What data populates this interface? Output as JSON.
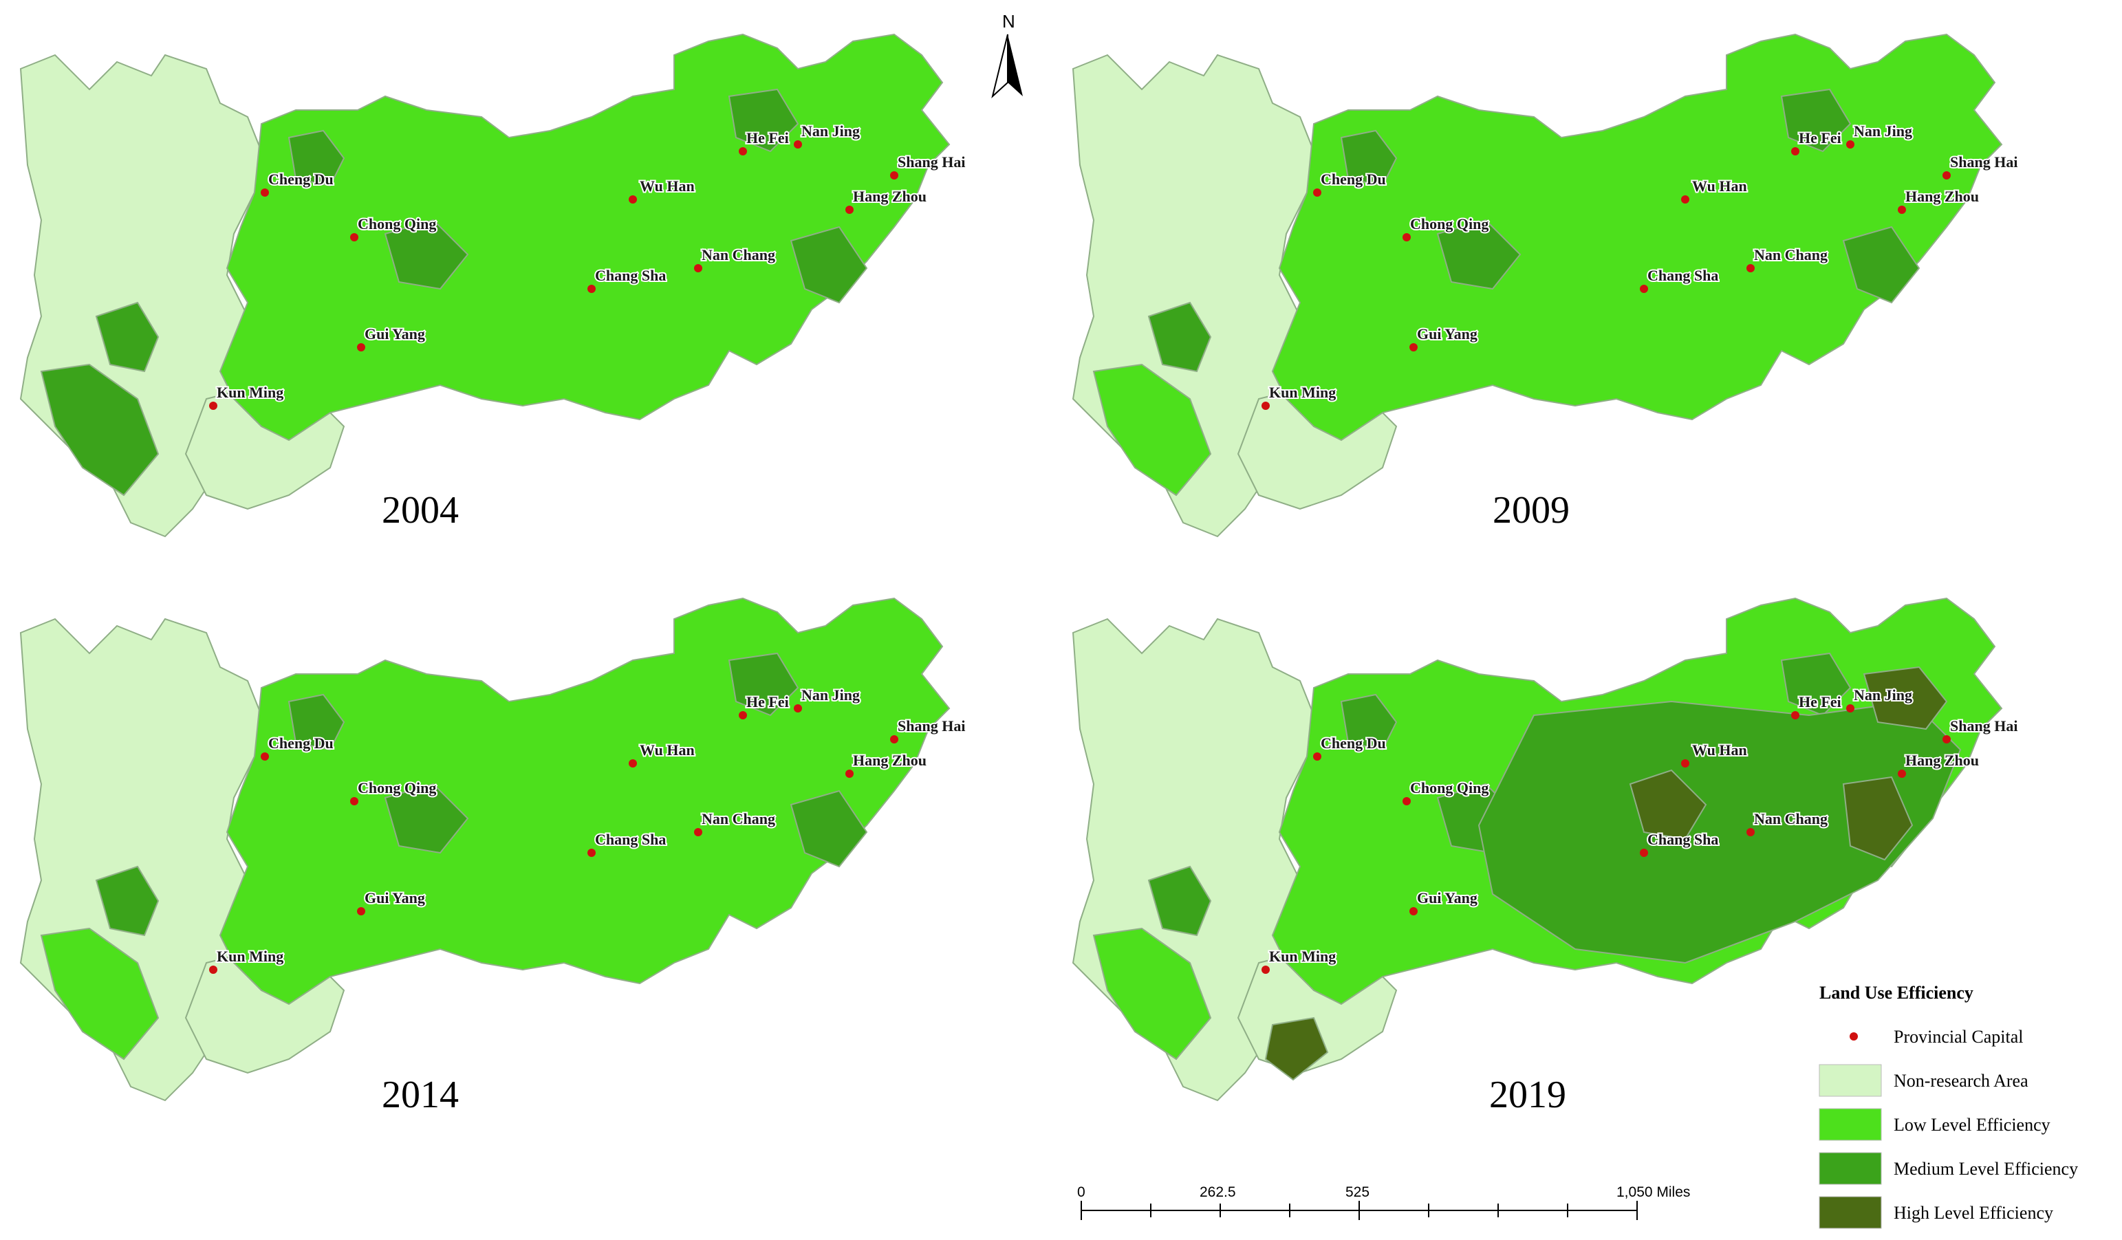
{
  "colors": {
    "non_research": "#d4f5c4",
    "low": "#4de01c",
    "medium": "#3ba31b",
    "high": "#4b6b14",
    "capital_dot": "#d01010",
    "boundary": "#8fae86"
  },
  "panels": [
    {
      "id": "p2004",
      "year": "2004",
      "medium_share": 0.25,
      "high_share": 0.0
    },
    {
      "id": "p2009",
      "year": "2009",
      "medium_share": 0.25,
      "high_share": 0.0
    },
    {
      "id": "p2014",
      "year": "2014",
      "medium_share": 0.28,
      "high_share": 0.0
    },
    {
      "id": "p2019",
      "year": "2019",
      "medium_share": 0.6,
      "high_share": 0.12
    }
  ],
  "capitals": [
    "Cheng Du",
    "Chong Qing",
    "Gui Yang",
    "Kun Ming",
    "Wu Han",
    "Chang Sha",
    "Nan Chang",
    "He Fei",
    "Nan Jing",
    "Shang Hai",
    "Hang Zhou"
  ],
  "north_arrow": {
    "label": "N",
    "icon": "north-arrow-icon"
  },
  "legend": {
    "title": "Land Use Efficiency",
    "items": [
      {
        "key": "capital",
        "label": "Provincial Capital"
      },
      {
        "key": "non_research",
        "label": "Non-research Area"
      },
      {
        "key": "low",
        "label": "Low       Level Efficiency"
      },
      {
        "key": "medium",
        "label": "Medium Level Efficiency"
      },
      {
        "key": "high",
        "label": "High       Level Efficiency"
      }
    ]
  },
  "scale_bar": {
    "ticks": [
      "0",
      "262.5",
      "525",
      "1,050 Miles"
    ]
  }
}
